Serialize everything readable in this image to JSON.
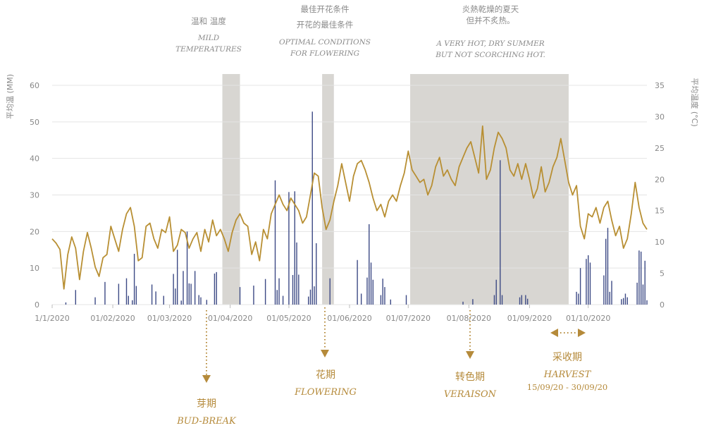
{
  "chart_data": {
    "type": "bar+line",
    "title": "",
    "colors": {
      "temperature_line": "#b88f33",
      "rain_bars": "#3d4a85",
      "shaded_period": "#d8d6d2",
      "stage_text": "#b58a3a"
    },
    "axes": {
      "x": {
        "type": "date",
        "range": [
          "2020-01-01",
          "2020-10-31"
        ],
        "ticks": [
          "1/1/2020",
          "01/02/2020",
          "01/03/2020",
          "01/04/2020",
          "01/05/2020",
          "01/06/2020",
          "01/07/2020",
          "01/08/2020",
          "01/09/2020",
          "01/10/2020"
        ]
      },
      "y_left": {
        "label": "平均温 (MM)",
        "range": [
          0,
          60
        ],
        "ticks": [
          "0",
          "10",
          "20",
          "30",
          "40",
          "50",
          "60"
        ]
      },
      "y_right": {
        "label": "平均温度 (°C)",
        "range": [
          0,
          35
        ],
        "ticks": [
          "0",
          "5",
          "10",
          "15",
          "20",
          "25",
          "30",
          "35"
        ]
      },
      "grid": true
    },
    "series": [
      {
        "name": "",
        "kind": "line",
        "axis": "right",
        "points": [
          [
            "2020-01-01",
            10.5
          ],
          [
            "2020-01-03",
            9.8
          ],
          [
            "2020-01-05",
            8.8
          ],
          [
            "2020-01-07",
            2.5
          ],
          [
            "2020-01-09",
            8.0
          ],
          [
            "2020-01-11",
            10.8
          ],
          [
            "2020-01-13",
            9.0
          ],
          [
            "2020-01-15",
            4.0
          ],
          [
            "2020-01-17",
            8.5
          ],
          [
            "2020-01-19",
            11.5
          ],
          [
            "2020-01-21",
            9.0
          ],
          [
            "2020-01-23",
            6.0
          ],
          [
            "2020-01-25",
            4.5
          ],
          [
            "2020-01-27",
            7.5
          ],
          [
            "2020-01-29",
            8.0
          ],
          [
            "2020-01-31",
            12.5
          ],
          [
            "2020-02-02",
            10.5
          ],
          [
            "2020-02-04",
            8.5
          ],
          [
            "2020-02-06",
            12.0
          ],
          [
            "2020-02-08",
            14.5
          ],
          [
            "2020-02-10",
            15.5
          ],
          [
            "2020-02-12",
            12.5
          ],
          [
            "2020-02-14",
            7.0
          ],
          [
            "2020-02-16",
            7.5
          ],
          [
            "2020-02-18",
            12.5
          ],
          [
            "2020-02-20",
            13.0
          ],
          [
            "2020-02-22",
            10.5
          ],
          [
            "2020-02-24",
            9.0
          ],
          [
            "2020-02-26",
            12.0
          ],
          [
            "2020-02-28",
            11.5
          ],
          [
            "2020-03-01",
            14.0
          ],
          [
            "2020-03-03",
            8.5
          ],
          [
            "2020-03-05",
            9.5
          ],
          [
            "2020-03-07",
            12.0
          ],
          [
            "2020-03-09",
            11.5
          ],
          [
            "2020-03-11",
            9.0
          ],
          [
            "2020-03-13",
            10.5
          ],
          [
            "2020-03-15",
            11.5
          ],
          [
            "2020-03-17",
            8.5
          ],
          [
            "2020-03-19",
            12.0
          ],
          [
            "2020-03-21",
            10.0
          ],
          [
            "2020-03-23",
            13.5
          ],
          [
            "2020-03-25",
            11.0
          ],
          [
            "2020-03-27",
            12.0
          ],
          [
            "2020-03-29",
            10.5
          ],
          [
            "2020-03-31",
            8.5
          ],
          [
            "2020-04-02",
            11.5
          ],
          [
            "2020-04-04",
            13.5
          ],
          [
            "2020-04-06",
            14.5
          ],
          [
            "2020-04-08",
            13.0
          ],
          [
            "2020-04-10",
            12.5
          ],
          [
            "2020-04-12",
            8.0
          ],
          [
            "2020-04-14",
            10.0
          ],
          [
            "2020-04-16",
            7.0
          ],
          [
            "2020-04-18",
            12.0
          ],
          [
            "2020-04-20",
            10.5
          ],
          [
            "2020-04-22",
            14.5
          ],
          [
            "2020-04-24",
            16.0
          ],
          [
            "2020-04-26",
            17.5
          ],
          [
            "2020-04-28",
            16.0
          ],
          [
            "2020-04-30",
            15.0
          ],
          [
            "2020-05-02",
            17.0
          ],
          [
            "2020-05-04",
            16.0
          ],
          [
            "2020-05-06",
            15.0
          ],
          [
            "2020-05-08",
            13.0
          ],
          [
            "2020-05-10",
            14.0
          ],
          [
            "2020-05-12",
            17.5
          ],
          [
            "2020-05-14",
            21.0
          ],
          [
            "2020-05-16",
            20.5
          ],
          [
            "2020-05-18",
            15.5
          ],
          [
            "2020-05-20",
            12.0
          ],
          [
            "2020-05-22",
            13.5
          ],
          [
            "2020-05-24",
            16.5
          ],
          [
            "2020-05-26",
            19.0
          ],
          [
            "2020-05-28",
            22.5
          ],
          [
            "2020-05-30",
            19.5
          ],
          [
            "2020-06-01",
            16.5
          ],
          [
            "2020-06-03",
            20.5
          ],
          [
            "2020-06-05",
            22.5
          ],
          [
            "2020-06-07",
            23.0
          ],
          [
            "2020-06-09",
            21.5
          ],
          [
            "2020-06-11",
            19.5
          ],
          [
            "2020-06-13",
            17.0
          ],
          [
            "2020-06-15",
            15.0
          ],
          [
            "2020-06-17",
            16.0
          ],
          [
            "2020-06-19",
            14.0
          ],
          [
            "2020-06-21",
            16.5
          ],
          [
            "2020-06-23",
            17.5
          ],
          [
            "2020-06-25",
            16.5
          ],
          [
            "2020-06-27",
            19.0
          ],
          [
            "2020-06-29",
            21.0
          ],
          [
            "2020-07-01",
            24.5
          ],
          [
            "2020-07-03",
            21.5
          ],
          [
            "2020-07-05",
            20.5
          ],
          [
            "2020-07-07",
            19.5
          ],
          [
            "2020-07-09",
            20.0
          ],
          [
            "2020-07-11",
            17.5
          ],
          [
            "2020-07-13",
            19.0
          ],
          [
            "2020-07-15",
            22.0
          ],
          [
            "2020-07-17",
            23.5
          ],
          [
            "2020-07-19",
            20.5
          ],
          [
            "2020-07-21",
            21.5
          ],
          [
            "2020-07-23",
            20.0
          ],
          [
            "2020-07-25",
            19.0
          ],
          [
            "2020-07-27",
            22.0
          ],
          [
            "2020-07-29",
            23.5
          ],
          [
            "2020-07-31",
            25.0
          ],
          [
            "2020-08-02",
            26.0
          ],
          [
            "2020-08-04",
            23.5
          ],
          [
            "2020-08-06",
            21.0
          ],
          [
            "2020-08-08",
            28.5
          ],
          [
            "2020-08-10",
            20.0
          ],
          [
            "2020-08-12",
            21.5
          ],
          [
            "2020-08-14",
            25.0
          ],
          [
            "2020-08-16",
            27.5
          ],
          [
            "2020-08-18",
            26.5
          ],
          [
            "2020-08-20",
            25.0
          ],
          [
            "2020-08-22",
            21.5
          ],
          [
            "2020-08-24",
            20.5
          ],
          [
            "2020-08-26",
            22.5
          ],
          [
            "2020-08-28",
            20.0
          ],
          [
            "2020-08-30",
            22.5
          ],
          [
            "2020-09-01",
            20.0
          ],
          [
            "2020-09-03",
            17.0
          ],
          [
            "2020-09-05",
            18.5
          ],
          [
            "2020-09-07",
            22.0
          ],
          [
            "2020-09-09",
            18.0
          ],
          [
            "2020-09-11",
            19.5
          ],
          [
            "2020-09-13",
            22.0
          ],
          [
            "2020-09-15",
            23.5
          ],
          [
            "2020-09-17",
            26.5
          ],
          [
            "2020-09-19",
            23.0
          ],
          [
            "2020-09-21",
            19.5
          ],
          [
            "2020-09-23",
            17.5
          ],
          [
            "2020-09-25",
            19.0
          ],
          [
            "2020-09-27",
            12.5
          ],
          [
            "2020-09-29",
            10.5
          ],
          [
            "2020-10-01",
            14.5
          ],
          [
            "2020-10-03",
            14.0
          ],
          [
            "2020-10-05",
            15.5
          ],
          [
            "2020-10-07",
            13.0
          ],
          [
            "2020-10-09",
            15.5
          ],
          [
            "2020-10-11",
            16.5
          ],
          [
            "2020-10-13",
            13.5
          ],
          [
            "2020-10-15",
            11.0
          ],
          [
            "2020-10-17",
            12.5
          ],
          [
            "2020-10-19",
            9.0
          ],
          [
            "2020-10-21",
            10.5
          ],
          [
            "2020-10-23",
            14.5
          ],
          [
            "2020-10-25",
            19.5
          ],
          [
            "2020-10-27",
            15.5
          ],
          [
            "2020-10-29",
            13.0
          ],
          [
            "2020-10-31",
            12.0
          ]
        ]
      },
      {
        "name": "",
        "kind": "bar",
        "axis": "left",
        "points": [
          [
            "2020-01-08",
            0.6
          ],
          [
            "2020-01-13",
            4.0
          ],
          [
            "2020-01-23",
            2.0
          ],
          [
            "2020-01-28",
            6.2
          ],
          [
            "2020-02-04",
            5.7
          ],
          [
            "2020-02-08",
            7.2
          ],
          [
            "2020-02-09",
            2.4
          ],
          [
            "2020-02-11",
            1.2
          ],
          [
            "2020-02-12",
            13.9
          ],
          [
            "2020-02-13",
            5.1
          ],
          [
            "2020-02-21",
            5.5
          ],
          [
            "2020-02-23",
            3.6
          ],
          [
            "2020-02-27",
            2.4
          ],
          [
            "2020-03-03",
            8.4
          ],
          [
            "2020-03-04",
            4.4
          ],
          [
            "2020-03-05",
            15.0
          ],
          [
            "2020-03-07",
            1.1
          ],
          [
            "2020-03-08",
            9.2
          ],
          [
            "2020-03-10",
            20.0
          ],
          [
            "2020-03-11",
            5.8
          ],
          [
            "2020-03-12",
            5.7
          ],
          [
            "2020-03-14",
            9.2
          ],
          [
            "2020-03-16",
            2.6
          ],
          [
            "2020-03-17",
            2.0
          ],
          [
            "2020-03-20",
            1.3
          ],
          [
            "2020-03-24",
            8.5
          ],
          [
            "2020-03-25",
            8.9
          ],
          [
            "2020-04-06",
            4.8
          ],
          [
            "2020-04-13",
            5.2
          ],
          [
            "2020-04-19",
            7.0
          ],
          [
            "2020-04-24",
            34.0
          ],
          [
            "2020-04-25",
            4.0
          ],
          [
            "2020-04-26",
            7.2
          ],
          [
            "2020-04-28",
            2.4
          ],
          [
            "2020-05-01",
            30.8
          ],
          [
            "2020-05-03",
            8.1
          ],
          [
            "2020-05-04",
            31.0
          ],
          [
            "2020-05-05",
            17.0
          ],
          [
            "2020-05-06",
            8.2
          ],
          [
            "2020-05-11",
            2.2
          ],
          [
            "2020-05-12",
            4.1
          ],
          [
            "2020-05-13",
            52.8
          ],
          [
            "2020-05-14",
            5.0
          ],
          [
            "2020-05-15",
            16.8
          ],
          [
            "2020-05-22",
            7.2
          ],
          [
            "2020-06-05",
            12.2
          ],
          [
            "2020-06-07",
            3.0
          ],
          [
            "2020-06-10",
            7.4
          ],
          [
            "2020-06-11",
            22.0
          ],
          [
            "2020-06-12",
            11.5
          ],
          [
            "2020-06-13",
            6.8
          ],
          [
            "2020-06-17",
            2.6
          ],
          [
            "2020-06-18",
            7.1
          ],
          [
            "2020-06-19",
            4.8
          ],
          [
            "2020-06-22",
            1.4
          ],
          [
            "2020-06-30",
            2.6
          ],
          [
            "2020-07-29",
            0.8
          ],
          [
            "2020-08-03",
            1.5
          ],
          [
            "2020-08-14",
            2.6
          ],
          [
            "2020-08-15",
            6.8
          ],
          [
            "2020-08-17",
            39.5
          ],
          [
            "2020-08-18",
            2.6
          ],
          [
            "2020-08-27",
            2.0
          ],
          [
            "2020-08-28",
            2.6
          ],
          [
            "2020-08-30",
            2.6
          ],
          [
            "2020-08-31",
            1.6
          ],
          [
            "2020-09-25",
            3.5
          ],
          [
            "2020-09-26",
            3.0
          ],
          [
            "2020-09-27",
            10.0
          ],
          [
            "2020-09-30",
            12.5
          ],
          [
            "2020-10-01",
            13.5
          ],
          [
            "2020-10-02",
            11.5
          ],
          [
            "2020-10-09",
            8.0
          ],
          [
            "2020-10-10",
            18.0
          ],
          [
            "2020-10-11",
            21.0
          ],
          [
            "2020-10-12",
            3.5
          ],
          [
            "2020-10-13",
            6.5
          ],
          [
            "2020-10-18",
            1.5
          ],
          [
            "2020-10-19",
            1.8
          ],
          [
            "2020-10-20",
            3.0
          ],
          [
            "2020-10-21",
            2.0
          ],
          [
            "2020-10-26",
            6.0
          ],
          [
            "2020-10-27",
            14.8
          ],
          [
            "2020-10-28",
            14.5
          ],
          [
            "2020-10-29",
            5.5
          ],
          [
            "2020-10-30",
            12.0
          ],
          [
            "2020-10-31",
            1.2
          ]
        ]
      }
    ],
    "shaded_periods": [
      {
        "start": "2020-03-28",
        "end": "2020-04-06"
      },
      {
        "start": "2020-05-18",
        "end": "2020-05-24"
      },
      {
        "start": "2020-07-02",
        "end": "2020-09-21"
      }
    ],
    "annotations": [
      {
        "key": "mild",
        "cn": "温和  温度",
        "en": [
          "MILD",
          "TEMPERATURES"
        ],
        "at": "2020-04-01"
      },
      {
        "key": "optimal",
        "cn": [
          "最佳开花条件",
          "开花的最佳条件"
        ],
        "en": [
          "OPTIMAL CONDITIONS",
          "FOR FLOWERING"
        ],
        "at": "2020-05-21"
      },
      {
        "key": "hot",
        "cn": [
          "炎熱乾燥的夏天",
          "但并不炙热。"
        ],
        "en": [
          "A VERY HOT, DRY SUMMER",
          "BUT NOT SCORCHING HOT."
        ],
        "at": "2020-08-12"
      }
    ],
    "stages": [
      {
        "key": "budbreak",
        "cn": "芽期",
        "en": "BUD-BREAK",
        "at": "2020-04-05"
      },
      {
        "key": "flowering",
        "cn": "花期",
        "en": "FLOWERING",
        "at": "2020-05-22"
      },
      {
        "key": "veraison",
        "cn": "转色期",
        "en": "VERAISON",
        "at": "2020-08-04"
      },
      {
        "key": "harvest",
        "cn": "采收期",
        "en": "HARVEST",
        "dates": "15/09/20 - 30/09/20",
        "start": "2020-09-15",
        "end": "2020-09-30"
      }
    ]
  }
}
